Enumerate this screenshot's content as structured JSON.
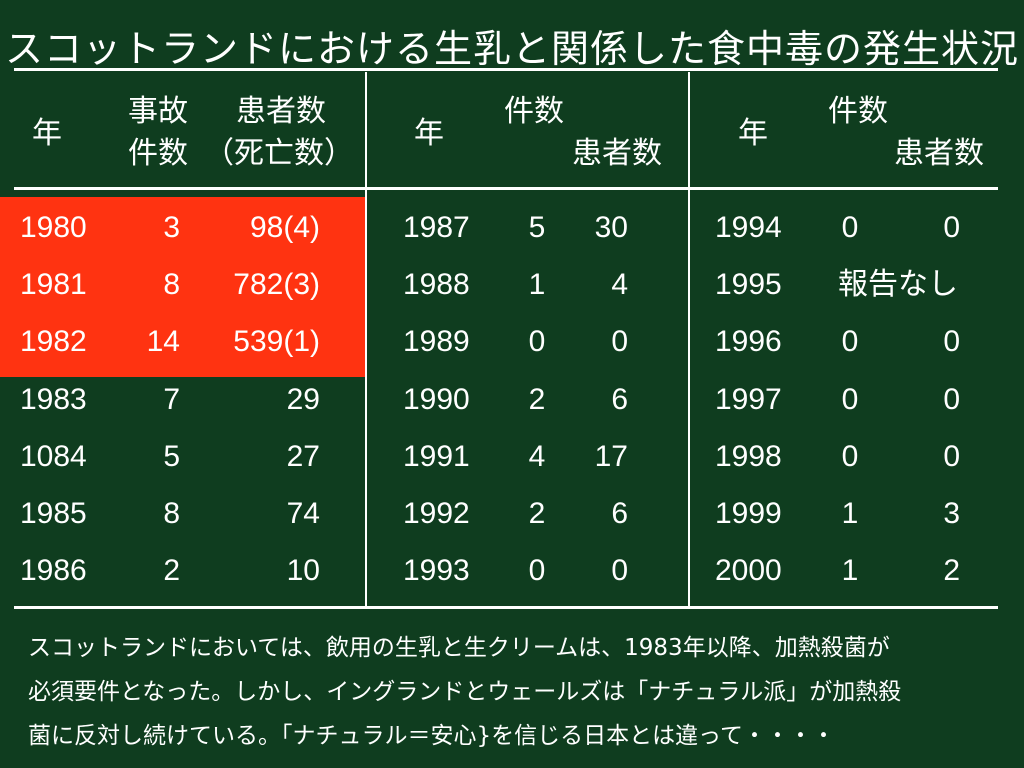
{
  "title": "スコットランドにおける生乳と関係した食中毒の発生状況",
  "headers": {
    "col1": {
      "year": "年",
      "incidents_line1": "事故",
      "incidents_line2": "件数",
      "patients_line1": "患者数",
      "patients_line2": "（死亡数）"
    },
    "col2": {
      "year": "年",
      "incidents": "件数",
      "patients": "患者数"
    },
    "col3": {
      "year": "年",
      "incidents": "件数",
      "patients": "患者数"
    }
  },
  "table_col1": [
    {
      "year": "1980",
      "incidents": "3",
      "patients": "98(4)"
    },
    {
      "year": "1981",
      "incidents": "8",
      "patients": "782(3)"
    },
    {
      "year": "1982",
      "incidents": "14",
      "patients": "539(1)"
    },
    {
      "year": "1983",
      "incidents": "7",
      "patients": "29"
    },
    {
      "year": "1084",
      "incidents": "5",
      "patients": "27"
    },
    {
      "year": "1985",
      "incidents": "8",
      "patients": "74"
    },
    {
      "year": "1986",
      "incidents": "2",
      "patients": "10"
    }
  ],
  "table_col2": [
    {
      "year": "1987",
      "incidents": "5",
      "patients": "30"
    },
    {
      "year": "1988",
      "incidents": "1",
      "patients": "4"
    },
    {
      "year": "1989",
      "incidents": "0",
      "patients": "0"
    },
    {
      "year": "1990",
      "incidents": "2",
      "patients": "6"
    },
    {
      "year": "1991",
      "incidents": "4",
      "patients": "17"
    },
    {
      "year": "1992",
      "incidents": "2",
      "patients": "6"
    },
    {
      "year": "1993",
      "incidents": "0",
      "patients": "0"
    }
  ],
  "table_col3": [
    {
      "year": "1994",
      "incidents": "0",
      "patients": "0"
    },
    {
      "year": "1995",
      "no_report": "報告なし"
    },
    {
      "year": "1996",
      "incidents": "0",
      "patients": "0"
    },
    {
      "year": "1997",
      "incidents": "0",
      "patients": "0"
    },
    {
      "year": "1998",
      "incidents": "0",
      "patients": "0"
    },
    {
      "year": "1999",
      "incidents": "1",
      "patients": "3"
    },
    {
      "year": "2000",
      "incidents": "1",
      "patients": "2"
    }
  ],
  "highlight_color": "#ff3311",
  "background_color": "#0f3d1f",
  "note_lines": [
    "スコットランドにおいては、飲用の生乳と生クリームは、1983年以降、加熱殺菌が",
    "必須要件となった。しかし、イングランドとウェールズは「ナチュラル派」が加熱殺",
    "菌に反対し続けている。「ナチュラル＝安心}を信じる日本とは違って・・・・"
  ]
}
